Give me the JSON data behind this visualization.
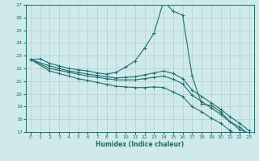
{
  "xlabel": "Humidex (Indice chaleur)",
  "ylabel": "",
  "background_color": "#ceeaea",
  "line_color": "#1a6e6e",
  "grid_color": "#b0d0d0",
  "xlim": [
    -0.5,
    23.5
  ],
  "ylim": [
    17,
    27
  ],
  "xticks": [
    0,
    1,
    2,
    3,
    4,
    5,
    6,
    7,
    8,
    9,
    10,
    11,
    12,
    13,
    14,
    15,
    16,
    17,
    18,
    19,
    20,
    21,
    22,
    23
  ],
  "yticks": [
    17,
    18,
    19,
    20,
    21,
    22,
    23,
    24,
    25,
    26,
    27
  ],
  "lines": [
    {
      "x": [
        0,
        1,
        2,
        3,
        4,
        5,
        6,
        7,
        8,
        9,
        10,
        11,
        12,
        13,
        14,
        15,
        16,
        17,
        18,
        19,
        20,
        21,
        22,
        23
      ],
      "y": [
        22.7,
        22.75,
        22.4,
        22.2,
        22.0,
        21.9,
        21.8,
        21.65,
        21.55,
        21.7,
        22.1,
        22.6,
        23.6,
        24.8,
        27.3,
        26.5,
        26.2,
        21.4,
        19.2,
        19.1,
        18.6,
        17.8,
        17.4,
        16.8
      ]
    },
    {
      "x": [
        0,
        2,
        3,
        4,
        5,
        6,
        7,
        8,
        9,
        10,
        11,
        12,
        13,
        14,
        15,
        16,
        17,
        18,
        19,
        20,
        21,
        22,
        23
      ],
      "y": [
        22.7,
        22.2,
        22.0,
        21.8,
        21.7,
        21.55,
        21.45,
        21.35,
        21.25,
        21.3,
        21.35,
        21.5,
        21.65,
        21.8,
        21.6,
        21.2,
        20.3,
        19.8,
        19.3,
        18.8,
        18.2,
        17.7,
        17.1
      ]
    },
    {
      "x": [
        0,
        2,
        3,
        4,
        5,
        6,
        7,
        8,
        9,
        10,
        11,
        12,
        13,
        14,
        15,
        16,
        17,
        18,
        19,
        20,
        21,
        22,
        23
      ],
      "y": [
        22.7,
        22.0,
        21.85,
        21.7,
        21.55,
        21.4,
        21.3,
        21.2,
        21.1,
        21.1,
        21.1,
        21.2,
        21.3,
        21.4,
        21.15,
        20.8,
        19.9,
        19.4,
        18.9,
        18.4,
        17.8,
        17.2,
        16.9
      ]
    },
    {
      "x": [
        0,
        2,
        3,
        4,
        5,
        6,
        7,
        8,
        9,
        10,
        11,
        12,
        13,
        14,
        15,
        16,
        17,
        18,
        19,
        20,
        21,
        22,
        23
      ],
      "y": [
        22.7,
        21.8,
        21.6,
        21.4,
        21.2,
        21.05,
        20.9,
        20.75,
        20.6,
        20.55,
        20.5,
        20.5,
        20.55,
        20.5,
        20.15,
        19.8,
        19.0,
        18.6,
        18.1,
        17.7,
        17.1,
        16.7,
        16.55
      ]
    }
  ]
}
